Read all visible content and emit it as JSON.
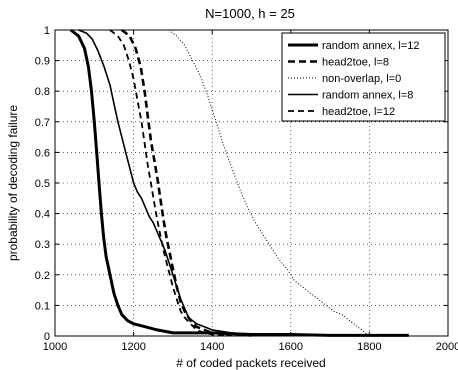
{
  "chart_data": {
    "type": "line",
    "title": "N=1000, h = 25",
    "xlabel": "# of coded packets received",
    "ylabel": "probability of decoding failure",
    "xlim": [
      1000,
      2000
    ],
    "ylim": [
      0,
      1
    ],
    "xticks": [
      "1000",
      "1200",
      "1400",
      "1600",
      "1800",
      "2000"
    ],
    "yticks": [
      "0",
      "0.1",
      "0.2",
      "0.3",
      "0.4",
      "0.5",
      "0.6",
      "0.7",
      "0.8",
      "0.9",
      "1"
    ],
    "grid": true,
    "legend_position": "top-right",
    "series": [
      {
        "name": "random annex, l=12",
        "style": "solid-thick",
        "points": [
          [
            1040,
            1.0
          ],
          [
            1060,
            0.98
          ],
          [
            1075,
            0.94
          ],
          [
            1085,
            0.88
          ],
          [
            1093,
            0.8
          ],
          [
            1100,
            0.7
          ],
          [
            1106,
            0.6
          ],
          [
            1112,
            0.5
          ],
          [
            1118,
            0.4
          ],
          [
            1124,
            0.32
          ],
          [
            1130,
            0.26
          ],
          [
            1140,
            0.2
          ],
          [
            1150,
            0.14
          ],
          [
            1160,
            0.1
          ],
          [
            1170,
            0.07
          ],
          [
            1185,
            0.05
          ],
          [
            1200,
            0.04
          ],
          [
            1230,
            0.03
          ],
          [
            1260,
            0.02
          ],
          [
            1300,
            0.01
          ],
          [
            1400,
            0.01
          ],
          [
            1500,
            0.005
          ],
          [
            1600,
            0.005
          ],
          [
            1700,
            0.002
          ],
          [
            1800,
            0.002
          ],
          [
            1900,
            0.002
          ]
        ]
      },
      {
        "name": "head2toe, l=8",
        "style": "dashed-thick",
        "points": [
          [
            1170,
            1.0
          ],
          [
            1190,
            0.98
          ],
          [
            1205,
            0.94
          ],
          [
            1218,
            0.88
          ],
          [
            1228,
            0.8
          ],
          [
            1236,
            0.72
          ],
          [
            1244,
            0.64
          ],
          [
            1252,
            0.58
          ],
          [
            1260,
            0.52
          ],
          [
            1268,
            0.45
          ],
          [
            1276,
            0.38
          ],
          [
            1284,
            0.32
          ],
          [
            1292,
            0.27
          ],
          [
            1300,
            0.22
          ],
          [
            1310,
            0.16
          ],
          [
            1320,
            0.11
          ],
          [
            1330,
            0.08
          ],
          [
            1345,
            0.05
          ],
          [
            1360,
            0.03
          ],
          [
            1380,
            0.02
          ],
          [
            1400,
            0.01
          ],
          [
            1450,
            0.005
          ],
          [
            1500,
            0.002
          ]
        ]
      },
      {
        "name": "non-overlap, l=0",
        "style": "dotted",
        "points": [
          [
            1290,
            1.0
          ],
          [
            1310,
            0.98
          ],
          [
            1330,
            0.95
          ],
          [
            1350,
            0.9
          ],
          [
            1370,
            0.85
          ],
          [
            1390,
            0.78
          ],
          [
            1410,
            0.7
          ],
          [
            1430,
            0.62
          ],
          [
            1450,
            0.55
          ],
          [
            1470,
            0.48
          ],
          [
            1490,
            0.42
          ],
          [
            1510,
            0.37
          ],
          [
            1530,
            0.33
          ],
          [
            1550,
            0.29
          ],
          [
            1570,
            0.25
          ],
          [
            1590,
            0.22
          ],
          [
            1610,
            0.18
          ],
          [
            1630,
            0.16
          ],
          [
            1650,
            0.14
          ],
          [
            1670,
            0.12
          ],
          [
            1690,
            0.1
          ],
          [
            1710,
            0.08
          ],
          [
            1730,
            0.07
          ],
          [
            1750,
            0.05
          ],
          [
            1770,
            0.03
          ],
          [
            1790,
            0.01
          ],
          [
            1800,
            0.0
          ]
        ]
      },
      {
        "name": "random annex, l=8",
        "style": "solid",
        "points": [
          [
            1060,
            1.0
          ],
          [
            1080,
            0.99
          ],
          [
            1095,
            0.97
          ],
          [
            1110,
            0.93
          ],
          [
            1125,
            0.88
          ],
          [
            1140,
            0.82
          ],
          [
            1150,
            0.76
          ],
          [
            1160,
            0.7
          ],
          [
            1170,
            0.65
          ],
          [
            1180,
            0.6
          ],
          [
            1190,
            0.55
          ],
          [
            1200,
            0.5
          ],
          [
            1210,
            0.47
          ],
          [
            1220,
            0.45
          ],
          [
            1230,
            0.42
          ],
          [
            1240,
            0.39
          ],
          [
            1250,
            0.37
          ],
          [
            1260,
            0.34
          ],
          [
            1270,
            0.31
          ],
          [
            1280,
            0.28
          ],
          [
            1290,
            0.24
          ],
          [
            1300,
            0.2
          ],
          [
            1310,
            0.16
          ],
          [
            1320,
            0.12
          ],
          [
            1330,
            0.09
          ],
          [
            1340,
            0.06
          ],
          [
            1360,
            0.04
          ],
          [
            1380,
            0.03
          ],
          [
            1400,
            0.02
          ],
          [
            1450,
            0.01
          ],
          [
            1500,
            0.005
          ],
          [
            1600,
            0.005
          ],
          [
            1700,
            0.002
          ],
          [
            1800,
            0.002
          ],
          [
            1900,
            0.002
          ]
        ]
      },
      {
        "name": "head2toe, l=12",
        "style": "dashed",
        "points": [
          [
            1140,
            1.0
          ],
          [
            1160,
            0.98
          ],
          [
            1175,
            0.95
          ],
          [
            1188,
            0.9
          ],
          [
            1200,
            0.84
          ],
          [
            1210,
            0.77
          ],
          [
            1220,
            0.7
          ],
          [
            1228,
            0.63
          ],
          [
            1236,
            0.56
          ],
          [
            1244,
            0.5
          ],
          [
            1252,
            0.44
          ],
          [
            1260,
            0.38
          ],
          [
            1268,
            0.33
          ],
          [
            1276,
            0.28
          ],
          [
            1284,
            0.24
          ],
          [
            1292,
            0.2
          ],
          [
            1300,
            0.16
          ],
          [
            1310,
            0.12
          ],
          [
            1320,
            0.08
          ],
          [
            1330,
            0.06
          ],
          [
            1345,
            0.04
          ],
          [
            1360,
            0.02
          ],
          [
            1380,
            0.01
          ],
          [
            1400,
            0.005
          ],
          [
            1450,
            0.002
          ]
        ]
      }
    ]
  }
}
